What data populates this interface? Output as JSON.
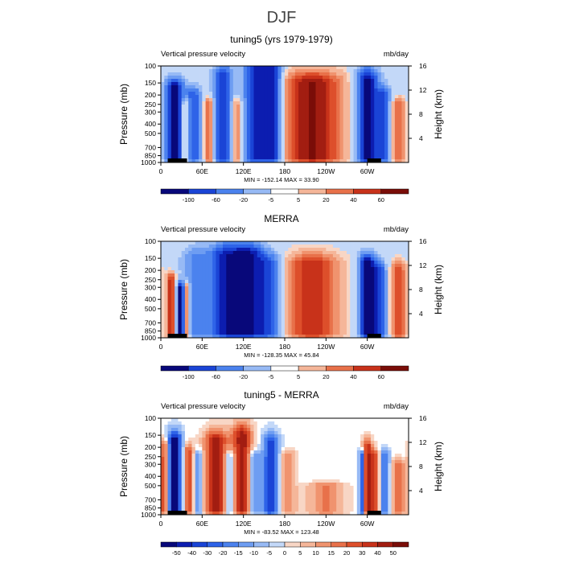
{
  "figure_title": "DJF",
  "colors": {
    "blue_ramp": [
      "#08087a",
      "#0c1db0",
      "#1a44d6",
      "#2e63e8",
      "#4b82ee",
      "#6e9df2",
      "#97baf5",
      "#c3d8f8"
    ],
    "red_ramp": [
      "#f8d6c5",
      "#f5b699",
      "#f0936e",
      "#e8714a",
      "#dd4f2b",
      "#c8321a",
      "#a21d11",
      "#7a0d08"
    ]
  },
  "panels": [
    {
      "title": "tuning5 (yrs 1979-1979)",
      "left_label": "Vertical pressure velocity",
      "right_label": "mb/day",
      "ylabel_left": "Pressure (mb)",
      "ylabel_right": "Height (km)",
      "stats": "MIN = -152.14   MAX =  33.90",
      "pressure_ticks": [
        "100",
        "150",
        "200",
        "250",
        "300",
        "400",
        "500",
        "700",
        "850",
        "1000"
      ],
      "height_ticks": [
        "4",
        "8",
        "12",
        "16"
      ],
      "lon_ticks": [
        "0",
        "60E",
        "120E",
        "180",
        "120W",
        "60W"
      ],
      "colorbar_labels": [
        "-100",
        "-60",
        "-20",
        "-5",
        "5",
        "20",
        "40",
        "60"
      ]
    },
    {
      "title": "MERRA",
      "left_label": "Vertical pressure velocity",
      "right_label": "mb/day",
      "ylabel_left": "Pressure (mb)",
      "ylabel_right": "Height (km)",
      "stats": "MIN = -128.35   MAX =  45.84",
      "pressure_ticks": [
        "100",
        "150",
        "200",
        "250",
        "300",
        "400",
        "500",
        "700",
        "850",
        "1000"
      ],
      "height_ticks": [
        "4",
        "8",
        "12",
        "16"
      ],
      "lon_ticks": [
        "0",
        "60E",
        "120E",
        "180",
        "120W",
        "60W"
      ],
      "colorbar_labels": [
        "-100",
        "-60",
        "-20",
        "-5",
        "5",
        "20",
        "40",
        "60"
      ]
    },
    {
      "title": "tuning5 - MERRA",
      "left_label": "Vertical pressure velocity",
      "right_label": "mb/day",
      "ylabel_left": "Pressure (mb)",
      "ylabel_right": "Height (km)",
      "stats": "MIN = -83.52   MAX = 123.48",
      "pressure_ticks": [
        "100",
        "150",
        "200",
        "250",
        "300",
        "400",
        "500",
        "700",
        "850",
        "1000"
      ],
      "height_ticks": [
        "4",
        "8",
        "12",
        "16"
      ],
      "lon_ticks": [
        "0",
        "60E",
        "120E",
        "180",
        "120W",
        "60W"
      ],
      "colorbar_labels": [
        "-50",
        "-40",
        "-30",
        "-20",
        "-15",
        "-10",
        "-5",
        "0",
        "5",
        "10",
        "15",
        "20",
        "30",
        "40",
        "50"
      ]
    }
  ],
  "chart_data": [
    {
      "type": "heatmap",
      "title": "tuning5 (yrs 1979-1979)",
      "variable": "Vertical pressure velocity",
      "units": "mb/day",
      "x_ticks": [
        "0",
        "60E",
        "120E",
        "180",
        "120W",
        "60W"
      ],
      "y_ticks": [
        100,
        150,
        200,
        250,
        300,
        400,
        500,
        700,
        850,
        1000
      ],
      "y_right_ticks": [
        4,
        8,
        12,
        16
      ],
      "y_scale": "log",
      "min": -152.14,
      "max": 33.9,
      "levels": [
        -100,
        -60,
        -20,
        -5,
        5,
        20,
        40,
        60
      ],
      "features": [
        {
          "lon": 20,
          "sign": -1,
          "amp": 0.95,
          "width": 10,
          "top": 170
        },
        {
          "lon": 35,
          "sign": 1,
          "amp": 0.5,
          "width": 4,
          "top": 250
        },
        {
          "lon": 48,
          "sign": -1,
          "amp": 0.6,
          "width": 8,
          "top": 200
        },
        {
          "lon": 70,
          "sign": 1,
          "amp": 0.6,
          "width": 5,
          "top": 250
        },
        {
          "lon": 90,
          "sign": -1,
          "amp": 0.75,
          "width": 10,
          "top": 130
        },
        {
          "lon": 110,
          "sign": 1,
          "amp": 0.5,
          "width": 5,
          "top": 250
        },
        {
          "lon": 140,
          "sign": -1,
          "amp": 0.85,
          "width": 14,
          "top": 110
        },
        {
          "lon": 165,
          "sign": -1,
          "amp": 0.75,
          "width": 9,
          "top": 120
        },
        {
          "lon": 220,
          "sign": 1,
          "amp": 0.9,
          "width": 30,
          "top": 150
        },
        {
          "lon": 300,
          "sign": -1,
          "amp": 0.95,
          "width": 12,
          "top": 140
        },
        {
          "lon": 325,
          "sign": -1,
          "amp": 0.55,
          "width": 8,
          "top": 200
        },
        {
          "lon": 345,
          "sign": 1,
          "amp": 0.5,
          "width": 8,
          "top": 250
        }
      ]
    },
    {
      "type": "heatmap",
      "title": "MERRA",
      "variable": "Vertical pressure velocity",
      "units": "mb/day",
      "x_ticks": [
        "0",
        "60E",
        "120E",
        "180",
        "120W",
        "60W"
      ],
      "y_ticks": [
        100,
        150,
        200,
        250,
        300,
        400,
        500,
        700,
        850,
        1000
      ],
      "y_right_ticks": [
        4,
        8,
        12,
        16
      ],
      "y_scale": "log",
      "min": -128.35,
      "max": 45.84,
      "levels": [
        -100,
        -60,
        -20,
        -5,
        5,
        20,
        40,
        60
      ],
      "features": [
        {
          "lon": 15,
          "sign": 1,
          "amp": 0.75,
          "width": 5,
          "top": 250
        },
        {
          "lon": 28,
          "sign": -1,
          "amp": 0.8,
          "width": 4,
          "top": 300
        },
        {
          "lon": 38,
          "sign": 1,
          "amp": 0.6,
          "width": 3,
          "top": 300
        },
        {
          "lon": 50,
          "sign": -1,
          "amp": 0.4,
          "width": 15,
          "top": 150
        },
        {
          "lon": 95,
          "sign": -1,
          "amp": 0.8,
          "width": 18,
          "top": 140
        },
        {
          "lon": 130,
          "sign": -1,
          "amp": 0.8,
          "width": 16,
          "top": 140
        },
        {
          "lon": 160,
          "sign": -1,
          "amp": 0.55,
          "width": 12,
          "top": 170
        },
        {
          "lon": 220,
          "sign": 1,
          "amp": 0.75,
          "width": 26,
          "top": 170
        },
        {
          "lon": 300,
          "sign": -1,
          "amp": 0.95,
          "width": 9,
          "top": 170
        },
        {
          "lon": 318,
          "sign": -1,
          "amp": 0.6,
          "width": 8,
          "top": 200
        },
        {
          "lon": 345,
          "sign": 1,
          "amp": 0.6,
          "width": 8,
          "top": 200
        }
      ]
    },
    {
      "type": "heatmap",
      "title": "tuning5 - MERRA",
      "variable": "Vertical pressure velocity",
      "units": "mb/day",
      "x_ticks": [
        "0",
        "60E",
        "120E",
        "180",
        "120W",
        "60W"
      ],
      "y_ticks": [
        100,
        150,
        200,
        250,
        300,
        400,
        500,
        700,
        850,
        1000
      ],
      "y_right_ticks": [
        4,
        8,
        12,
        16
      ],
      "y_scale": "log",
      "min": -83.52,
      "max": 123.48,
      "levels": [
        -50,
        -40,
        -30,
        -20,
        -15,
        -10,
        -5,
        0,
        5,
        10,
        15,
        20,
        30,
        40,
        50
      ],
      "features": [
        {
          "lon": 5,
          "sign": 1,
          "amp": 0.7,
          "width": 4,
          "top": 200
        },
        {
          "lon": 20,
          "sign": -1,
          "amp": 0.95,
          "width": 8,
          "top": 170
        },
        {
          "lon": 40,
          "sign": 1,
          "amp": 0.6,
          "width": 5,
          "top": 220
        },
        {
          "lon": 55,
          "sign": -1,
          "amp": 0.4,
          "width": 5,
          "top": 250
        },
        {
          "lon": 80,
          "sign": 1,
          "amp": 0.85,
          "width": 12,
          "top": 170
        },
        {
          "lon": 100,
          "sign": -1,
          "amp": 0.5,
          "width": 6,
          "top": 250
        },
        {
          "lon": 118,
          "sign": 1,
          "amp": 0.85,
          "width": 10,
          "top": 150
        },
        {
          "lon": 135,
          "sign": -1,
          "amp": 0.45,
          "width": 7,
          "top": 250
        },
        {
          "lon": 160,
          "sign": -1,
          "amp": 0.75,
          "width": 8,
          "top": 180
        },
        {
          "lon": 185,
          "sign": 1,
          "amp": 0.35,
          "width": 8,
          "top": 250
        },
        {
          "lon": 240,
          "sign": 1,
          "amp": 0.4,
          "width": 18,
          "top": 500
        },
        {
          "lon": 292,
          "sign": -1,
          "amp": 0.8,
          "width": 3,
          "top": 250
        },
        {
          "lon": 300,
          "sign": 1,
          "amp": 0.75,
          "width": 5,
          "top": 200
        },
        {
          "lon": 312,
          "sign": 1,
          "amp": 0.65,
          "width": 5,
          "top": 250
        },
        {
          "lon": 325,
          "sign": -1,
          "amp": 0.55,
          "width": 6,
          "top": 250
        },
        {
          "lon": 345,
          "sign": 1,
          "amp": 0.45,
          "width": 8,
          "top": 300
        }
      ]
    }
  ]
}
